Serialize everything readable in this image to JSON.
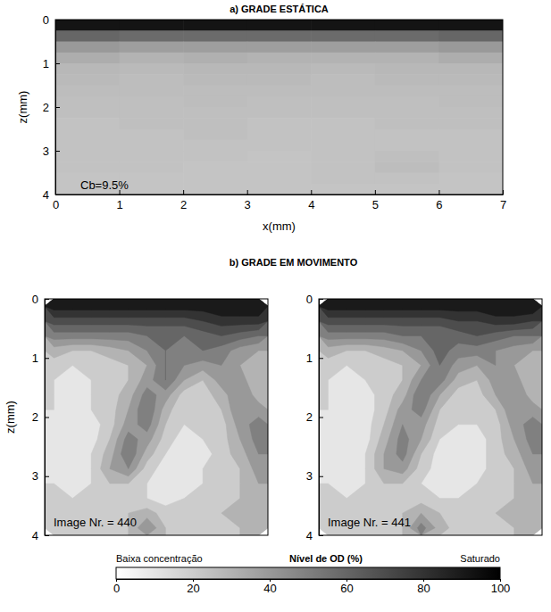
{
  "chart_data": [
    {
      "type": "heatmap",
      "title": "a) GRADE ESTÁTICA",
      "x_label": "x(mm)",
      "y_label": "z(mm)",
      "xlim": [
        0,
        7
      ],
      "ylim": [
        0,
        4
      ],
      "xticks": [
        0,
        1,
        2,
        3,
        4,
        5,
        6,
        7
      ],
      "yticks": [
        0,
        1,
        2,
        3,
        4
      ],
      "annotation": "Cb=9.5%",
      "values": [
        [
          92,
          92,
          92,
          92,
          92,
          92,
          92
        ],
        [
          60,
          58,
          58,
          58,
          58,
          58,
          60
        ],
        [
          40,
          38,
          38,
          38,
          38,
          38,
          40
        ],
        [
          32,
          30,
          31,
          30,
          30,
          30,
          32
        ],
        [
          28,
          27,
          28,
          28,
          27,
          28,
          28
        ],
        [
          27,
          26,
          27,
          27,
          26,
          27,
          27
        ],
        [
          26,
          26,
          26,
          26,
          26,
          26,
          26
        ],
        [
          25,
          25,
          26,
          25,
          25,
          25,
          26
        ],
        [
          25,
          25,
          25,
          25,
          25,
          25,
          25
        ],
        [
          24,
          25,
          25,
          24,
          24,
          25,
          25
        ],
        [
          24,
          24,
          25,
          24,
          24,
          24,
          24
        ],
        [
          24,
          24,
          24,
          24,
          24,
          24,
          24
        ],
        [
          24,
          24,
          24,
          23,
          24,
          25,
          24
        ],
        [
          24,
          24,
          23,
          23,
          24,
          26,
          24
        ],
        [
          23,
          23,
          23,
          23,
          24,
          24,
          23
        ],
        [
          23,
          23,
          23,
          23,
          23,
          23,
          23
        ]
      ]
    },
    {
      "type": "contour",
      "title": "b) GRADE EM MOVIMENTO",
      "y_label": "z(mm)",
      "xlim": [
        0,
        4
      ],
      "ylim": [
        0,
        4
      ],
      "yticks": [
        0,
        1,
        2,
        3,
        4
      ],
      "tick_labels": "y",
      "levels": [
        0,
        10,
        20,
        30,
        40,
        50,
        60,
        70,
        80,
        90
      ],
      "panels": [
        {
          "annotation": "Image Nr. = 440",
          "values": [
            [
              95,
              95,
              95,
              95,
              95,
              95,
              95,
              95,
              95,
              100,
              100,
              100
            ],
            [
              75,
              75,
              75,
              75,
              75,
              75,
              75,
              75,
              80,
              85,
              85,
              85
            ],
            [
              55,
              55,
              55,
              55,
              55,
              60,
              60,
              60,
              65,
              70,
              65,
              60
            ],
            [
              35,
              30,
              30,
              35,
              40,
              50,
              60,
              55,
              60,
              55,
              45,
              40
            ],
            [
              25,
              20,
              20,
              25,
              30,
              40,
              60,
              50,
              45,
              50,
              40,
              30
            ],
            [
              20,
              15,
              20,
              25,
              30,
              45,
              60,
              40,
              30,
              45,
              45,
              30
            ],
            [
              20,
              15,
              20,
              25,
              35,
              55,
              45,
              25,
              25,
              35,
              50,
              35
            ],
            [
              20,
              15,
              20,
              25,
              40,
              60,
              35,
              20,
              20,
              30,
              50,
              45
            ],
            [
              15,
              10,
              15,
              25,
              45,
              55,
              30,
              20,
              20,
              25,
              45,
              55
            ],
            [
              15,
              10,
              15,
              30,
              55,
              45,
              25,
              15,
              20,
              25,
              40,
              55
            ],
            [
              15,
              10,
              20,
              35,
              60,
              35,
              20,
              15,
              15,
              25,
              35,
              50
            ],
            [
              15,
              10,
              20,
              40,
              50,
              25,
              15,
              10,
              20,
              25,
              30,
              45
            ],
            [
              20,
              15,
              20,
              30,
              30,
              20,
              10,
              10,
              20,
              25,
              30,
              40
            ],
            [
              20,
              20,
              20,
              25,
              25,
              20,
              15,
              20,
              25,
              25,
              30,
              35
            ],
            [
              25,
              25,
              25,
              25,
              30,
              35,
              25,
              25,
              25,
              30,
              30,
              30
            ],
            [
              25,
              25,
              20,
              25,
              30,
              50,
              30,
              25,
              25,
              25,
              30,
              30
            ]
          ]
        },
        {
          "annotation": "Image Nr. = 441",
          "values": [
            [
              95,
              95,
              95,
              95,
              95,
              95,
              95,
              95,
              95,
              100,
              100,
              100
            ],
            [
              75,
              75,
              75,
              75,
              75,
              75,
              75,
              80,
              80,
              85,
              85,
              80
            ],
            [
              55,
              55,
              55,
              55,
              60,
              60,
              60,
              65,
              70,
              65,
              60,
              60
            ],
            [
              35,
              30,
              30,
              35,
              40,
              50,
              65,
              55,
              55,
              50,
              45,
              40
            ],
            [
              25,
              20,
              20,
              25,
              30,
              40,
              60,
              45,
              40,
              50,
              40,
              30
            ],
            [
              20,
              15,
              20,
              25,
              30,
              50,
              55,
              35,
              30,
              45,
              45,
              30
            ],
            [
              20,
              15,
              15,
              25,
              35,
              60,
              40,
              25,
              25,
              40,
              50,
              35
            ],
            [
              20,
              15,
              15,
              25,
              45,
              55,
              30,
              20,
              20,
              30,
              50,
              45
            ],
            [
              15,
              10,
              15,
              30,
              50,
              45,
              25,
              20,
              20,
              25,
              45,
              55
            ],
            [
              15,
              10,
              15,
              35,
              55,
              40,
              20,
              15,
              15,
              25,
              40,
              55
            ],
            [
              15,
              10,
              20,
              40,
              55,
              30,
              15,
              10,
              15,
              25,
              35,
              50
            ],
            [
              15,
              15,
              20,
              40,
              45,
              25,
              15,
              10,
              15,
              25,
              30,
              45
            ],
            [
              20,
              15,
              20,
              30,
              30,
              20,
              15,
              15,
              20,
              25,
              30,
              40
            ],
            [
              20,
              20,
              20,
              25,
              25,
              25,
              20,
              20,
              25,
              25,
              30,
              35
            ],
            [
              25,
              25,
              25,
              25,
              30,
              40,
              30,
              25,
              25,
              30,
              30,
              30
            ],
            [
              25,
              25,
              20,
              25,
              30,
              55,
              35,
              25,
              25,
              25,
              30,
              30
            ]
          ]
        }
      ]
    },
    {
      "type": "colorbar",
      "title": "Nível de OD (%)",
      "low_label": "Baixa concentração",
      "high_label": "Saturado",
      "range": [
        0,
        100
      ],
      "ticks": [
        0,
        20,
        40,
        60,
        80,
        100
      ]
    }
  ]
}
